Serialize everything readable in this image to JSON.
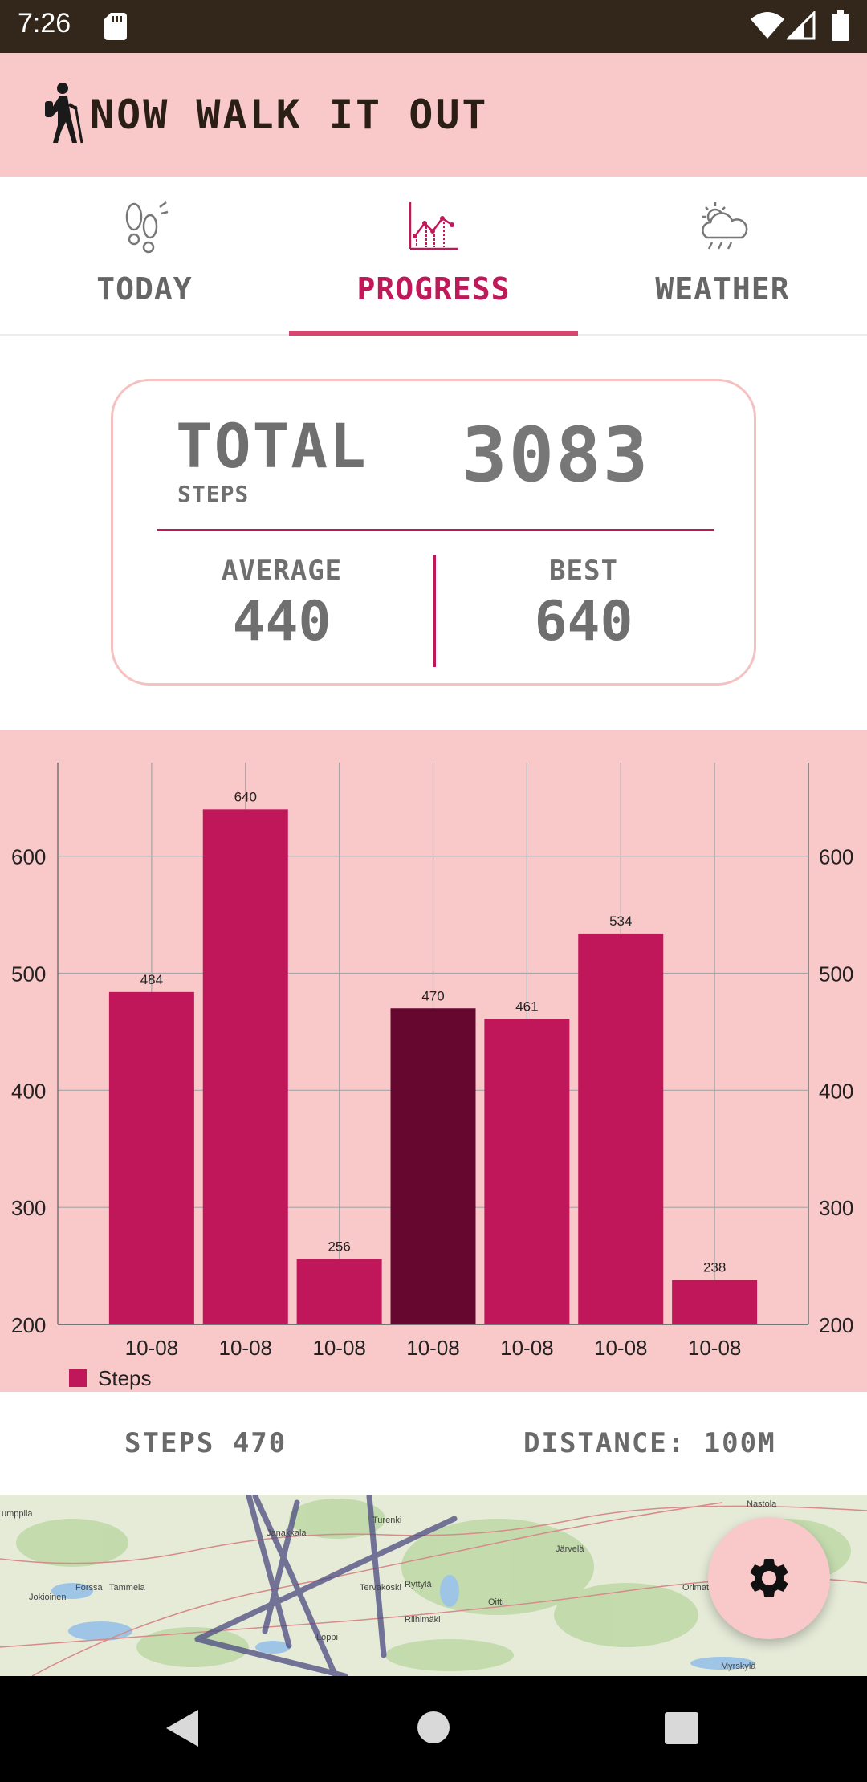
{
  "status_bar": {
    "time": "7:26",
    "icons": [
      "sd-card-icon",
      "wifi-icon",
      "signal-icon",
      "battery-icon"
    ]
  },
  "app_bar": {
    "title": "NOW WALK IT OUT",
    "logo_icon": "hiker-icon"
  },
  "tabs": [
    {
      "label": "TODAY",
      "icon": "footprints-icon",
      "active": false
    },
    {
      "label": "PROGRESS",
      "icon": "line-chart-icon",
      "active": true
    },
    {
      "label": "WEATHER",
      "icon": "cloud-sun-rain-icon",
      "active": false
    }
  ],
  "summary": {
    "total_label": "TOTAL",
    "steps_label": "STEPS",
    "total_value": "3083",
    "average_label": "AVERAGE",
    "average_value": "440",
    "best_label": "BEST",
    "best_value": "640"
  },
  "chart_data": {
    "type": "bar",
    "categories": [
      "10-08",
      "10-08",
      "10-08",
      "10-08",
      "10-08",
      "10-08",
      "10-08"
    ],
    "series": [
      {
        "name": "Steps",
        "values": [
          484,
          640,
          256,
          470,
          461,
          534,
          238
        ]
      }
    ],
    "highlighted_index": 3,
    "ylim": [
      200,
      680
    ],
    "yticks": [
      200,
      300,
      400,
      500,
      600
    ],
    "grid": true,
    "legend": "bottom-left",
    "colors": {
      "bar": "#c0165a",
      "highlight": "#65072f",
      "background": "#f9c9c9",
      "grid": "#a5a5a5"
    }
  },
  "stats": {
    "steps_text": "STEPS 470",
    "distance_text": "DISTANCE: 100M"
  },
  "map": {
    "places": [
      "umppila",
      "Forssa",
      "Tammela",
      "Jokioinen",
      "Turenki",
      "Janakkala",
      "Ryttylä",
      "Tervakoski",
      "Oitti",
      "Riihimäki",
      "Loppi",
      "Järvelä",
      "Orimattila",
      "Nastola",
      "Myrskylä"
    ]
  },
  "fab": {
    "icon": "gear-icon"
  },
  "nav_bar": {
    "icons": [
      "back-icon",
      "home-icon",
      "recents-icon"
    ]
  }
}
